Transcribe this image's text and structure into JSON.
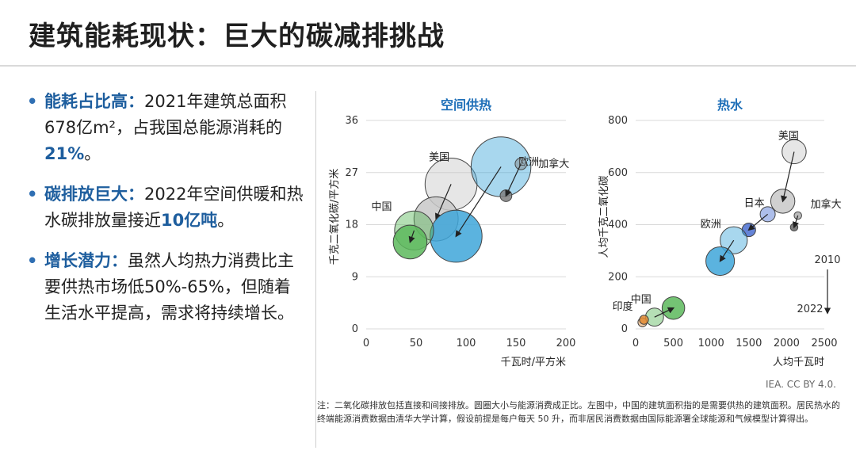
{
  "page": {
    "title": "建筑能耗现状：巨大的碳减排挑战",
    "bullets": [
      {
        "head": "能耗占比高：",
        "text_a": "2021年建筑总面积678亿m²，占我国总能源消耗的",
        "highlight": "21%",
        "text_b": "。"
      },
      {
        "head": "碳排放巨大：",
        "text_a": "2022年空间供暖和热水碳排放量接近",
        "highlight": "10亿吨",
        "text_b": "。"
      },
      {
        "head": "增长潜力：",
        "text_a": "虽然人均热力消费比主要供热市场低50%-65%，但随着生活水平提高，需求将持续增长。",
        "highlight": "",
        "text_b": ""
      }
    ],
    "credit": "IEA. CC BY 4.0.",
    "footnote": "注：二氧化碳排放包括直接和间接排放。圆圈大小与能源消费成正比。左图中，中国的建筑面积指的是需要供热的建筑面积。居民热水的终端能源消费数据由清华大学计算，假设前提是每户每天 50 升，而非居民消费数据由国际能源署全球能源和气候模型计算得出。",
    "colors": {
      "accent": "#1e5e9e",
      "chart_title": "#1e6fb8"
    }
  },
  "chart_data": [
    {
      "type": "scatter",
      "title": "空间供热",
      "xlabel": "千瓦时/平方米",
      "ylabel": "千克二氧化碳/平方米",
      "xlim": [
        0,
        200
      ],
      "ylim": [
        0,
        36
      ],
      "xticks": [
        0,
        50,
        100,
        150,
        200
      ],
      "yticks": [
        0,
        9,
        18,
        27,
        36
      ],
      "series": [
        {
          "name": "美国",
          "color": "#c8c8c8",
          "start": {
            "x": 85,
            "y": 25,
            "size": 4.0
          },
          "end": {
            "x": 70,
            "y": 19,
            "size": 3.4
          }
        },
        {
          "name": "欧洲",
          "color": "#3ea6d9",
          "start": {
            "x": 135,
            "y": 28,
            "size": 4.6
          },
          "end": {
            "x": 90,
            "y": 16,
            "size": 4.0
          }
        },
        {
          "name": "加拿大",
          "color": "#7f7f7f",
          "start": {
            "x": 155,
            "y": 28.5,
            "size": 0.9
          },
          "end": {
            "x": 140,
            "y": 23,
            "size": 0.9
          }
        },
        {
          "name": "中国",
          "color": "#5cb85c",
          "start": {
            "x": 48,
            "y": 17,
            "size": 3.0
          },
          "end": {
            "x": 44,
            "y": 15,
            "size": 2.6
          }
        }
      ]
    },
    {
      "type": "scatter",
      "title": "热水",
      "xlabel": "人均千瓦时",
      "ylabel": "人均千克二氧化碳",
      "xlim": [
        0,
        2500
      ],
      "ylim": [
        0,
        800
      ],
      "xticks": [
        0,
        500,
        1000,
        1500,
        2000,
        2500
      ],
      "yticks": [
        0,
        200,
        400,
        600,
        800
      ],
      "legend": {
        "start": "2010",
        "end": "2022"
      },
      "series": [
        {
          "name": "美国",
          "color": "#c8c8c8",
          "start": {
            "x": 2100,
            "y": 680,
            "size": 1.6
          },
          "end": {
            "x": 1950,
            "y": 490,
            "size": 1.6
          }
        },
        {
          "name": "日本",
          "color": "#4a6fd0",
          "start": {
            "x": 1750,
            "y": 440,
            "size": 1.0
          },
          "end": {
            "x": 1500,
            "y": 380,
            "size": 0.9
          }
        },
        {
          "name": "欧洲",
          "color": "#3ea6d9",
          "start": {
            "x": 1300,
            "y": 340,
            "size": 1.8
          },
          "end": {
            "x": 1120,
            "y": 260,
            "size": 1.9
          }
        },
        {
          "name": "加拿大",
          "color": "#666666",
          "start": {
            "x": 2150,
            "y": 435,
            "size": 0.5
          },
          "end": {
            "x": 2100,
            "y": 390,
            "size": 0.5
          }
        },
        {
          "name": "中国",
          "color": "#5cb85c",
          "start": {
            "x": 250,
            "y": 45,
            "size": 1.2
          },
          "end": {
            "x": 500,
            "y": 80,
            "size": 1.5
          }
        },
        {
          "name": "印度",
          "color": "#e08a33",
          "start": {
            "x": 90,
            "y": 25,
            "size": 0.6
          },
          "end": {
            "x": 110,
            "y": 35,
            "size": 0.6
          }
        }
      ]
    }
  ]
}
